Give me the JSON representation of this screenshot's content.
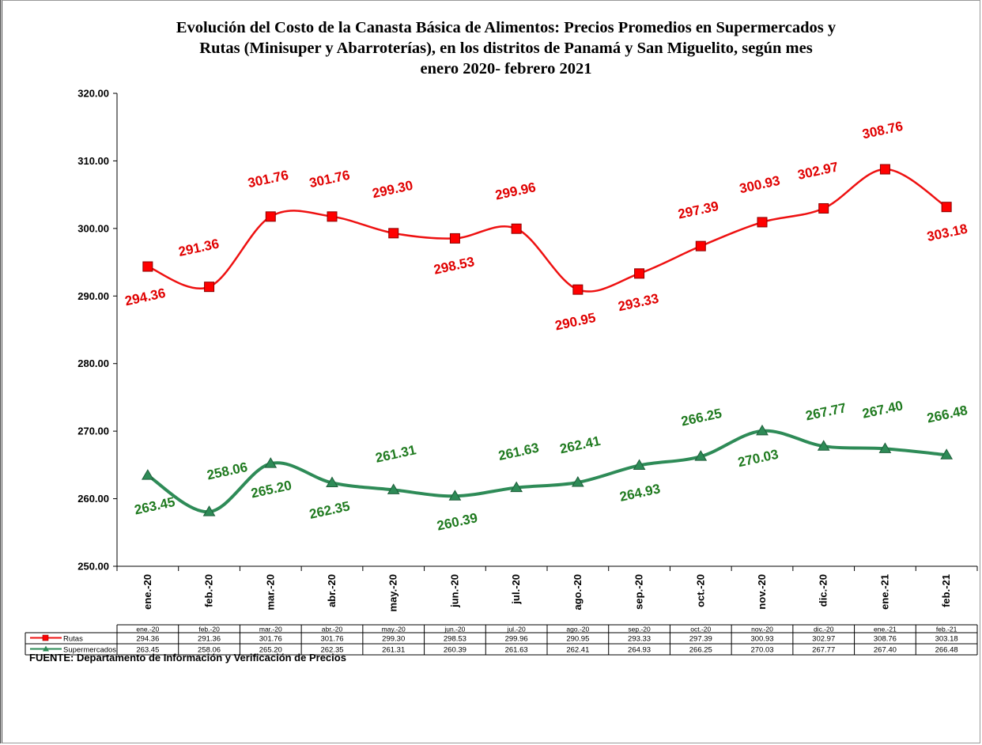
{
  "chart_data": {
    "type": "line",
    "title_lines": [
      "Evolución del Costo de la Canasta Básica de Alimentos: Precios Promedios en Supermercados y",
      "Rutas (Minisuper y Abarroterías), en  los   distritos de Panamá y San Miguelito,  según mes",
      "enero 2020- febrero 2021"
    ],
    "ylim": [
      250,
      320
    ],
    "y_ticks": [
      "250.00",
      "260.00",
      "270.00",
      "280.00",
      "290.00",
      "300.00",
      "310.00",
      "320.00"
    ],
    "y_tick_values": [
      250,
      260,
      270,
      280,
      290,
      300,
      310,
      320
    ],
    "categories": [
      "ene.-20",
      "feb.-20",
      "mar.-20",
      "abr.-20",
      "may.-20",
      "jun.-20",
      "jul.-20",
      "ago.-20",
      "sep.-20",
      "oct.-20",
      "nov.-20",
      "dic.-20",
      "ene.-21",
      "feb.-21"
    ],
    "series": [
      {
        "name": "Rutas",
        "color": "#ee1111",
        "marker": "square",
        "values": [
          294.36,
          291.36,
          301.76,
          301.76,
          299.3,
          298.53,
          299.96,
          290.95,
          293.33,
          297.39,
          300.93,
          302.97,
          308.76,
          303.18
        ],
        "labels": [
          "294.36",
          "291.36",
          "301.76",
          "301.76",
          "299.30",
          "298.53",
          "299.96",
          "290.95",
          "293.33",
          "297.39",
          "300.93",
          "302.97",
          "308.76",
          "303.18"
        ]
      },
      {
        "name": "Supermercados",
        "color": "#2e8b57",
        "marker": "triangle",
        "values": [
          263.45,
          258.06,
          265.2,
          262.35,
          261.31,
          260.39,
          261.63,
          262.41,
          264.93,
          266.25,
          270.03,
          267.77,
          267.4,
          266.48
        ],
        "labels": [
          "263.45",
          "258.06",
          "265.20",
          "262.35",
          "261.31",
          "260.39",
          "261.63",
          "262.41",
          "264.93",
          "266.25",
          "270.03",
          "267.77",
          "267.40",
          "266.48"
        ]
      }
    ],
    "data_table": true,
    "grid": false
  },
  "source_note": "FUENTE: Departamento de Información y Verificación de Precios"
}
